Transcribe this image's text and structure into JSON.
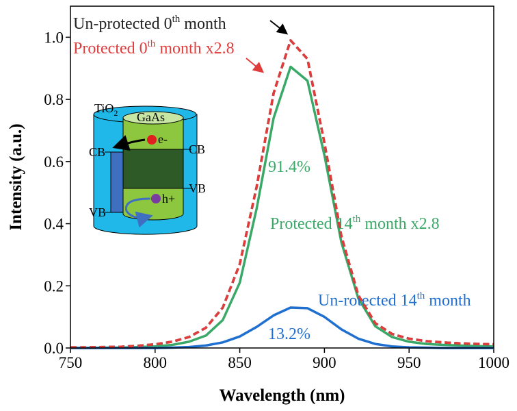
{
  "chart_data": {
    "type": "line",
    "x_label": "Wavelength (nm)",
    "y_label": "Intensity (a.u.)",
    "x": [
      750,
      760,
      770,
      780,
      790,
      800,
      810,
      820,
      830,
      840,
      850,
      860,
      870,
      880,
      890,
      900,
      910,
      920,
      930,
      940,
      950,
      960,
      970,
      980,
      990,
      1000
    ],
    "series": [
      {
        "label": {
          "before": "Protected 14",
          "sup": "th",
          "after": " month x2.8"
        },
        "color": "#3aa867",
        "dash": false,
        "values": [
          0,
          0,
          0.001,
          0.001,
          0.003,
          0.005,
          0.01,
          0.02,
          0.04,
          0.09,
          0.21,
          0.45,
          0.74,
          0.905,
          0.86,
          0.62,
          0.34,
          0.16,
          0.07,
          0.035,
          0.02,
          0.013,
          0.01,
          0.008,
          0.006,
          0.005
        ]
      },
      {
        "label": {
          "before": "Un-rotected 14",
          "sup": "th",
          "after": " month"
        },
        "color": "#1f6fd0",
        "dash": false,
        "values": [
          0,
          0,
          0,
          0,
          0,
          0,
          0.001,
          0.003,
          0.008,
          0.018,
          0.037,
          0.068,
          0.105,
          0.13,
          0.128,
          0.1,
          0.06,
          0.03,
          0.013,
          0.005,
          0.002,
          0.001,
          0,
          0,
          0,
          0
        ]
      },
      {
        "label": {
          "before": "Un-protected 0",
          "sup": "th",
          "after": " month"
        },
        "color": "#222222",
        "dash": true,
        "values": [
          0.002,
          0.002,
          0.003,
          0.004,
          0.007,
          0.012,
          0.02,
          0.035,
          0.065,
          0.13,
          0.27,
          0.52,
          0.82,
          0.99,
          0.93,
          0.66,
          0.36,
          0.17,
          0.08,
          0.045,
          0.03,
          0.022,
          0.018,
          0.015,
          0.013,
          0.012
        ]
      },
      {
        "label": {
          "before": "Protected 0",
          "sup": "th",
          "after": " month x2.8"
        },
        "color": "#e03c3c",
        "dash": true,
        "values": [
          0.002,
          0.002,
          0.003,
          0.004,
          0.007,
          0.012,
          0.02,
          0.035,
          0.065,
          0.13,
          0.27,
          0.52,
          0.82,
          0.99,
          0.93,
          0.66,
          0.36,
          0.17,
          0.08,
          0.045,
          0.03,
          0.022,
          0.018,
          0.015,
          0.013,
          0.012
        ]
      }
    ],
    "annotations": [
      {
        "text": "91.4%",
        "color": "#3aa867"
      },
      {
        "text": "13.2%",
        "color": "#1f6fd0"
      }
    ],
    "xlim": [
      750,
      1000
    ],
    "xticks": [
      750,
      800,
      850,
      900,
      950,
      1000
    ],
    "ylim": [
      0,
      1.1
    ],
    "yticks": [
      {
        "value": 0,
        "label": "0.0"
      },
      0.2,
      0.4,
      0.6,
      0.8,
      {
        "value": 1,
        "label": "1.0"
      }
    ]
  },
  "inset": {
    "tio2": {
      "text": "TiO",
      "sub": "2"
    },
    "gaas": "GaAs",
    "cb_left": "CB",
    "cb_right": "CB",
    "vb_right": "VB",
    "vb_left": "VB",
    "electron": "e-",
    "hole": "h+"
  }
}
